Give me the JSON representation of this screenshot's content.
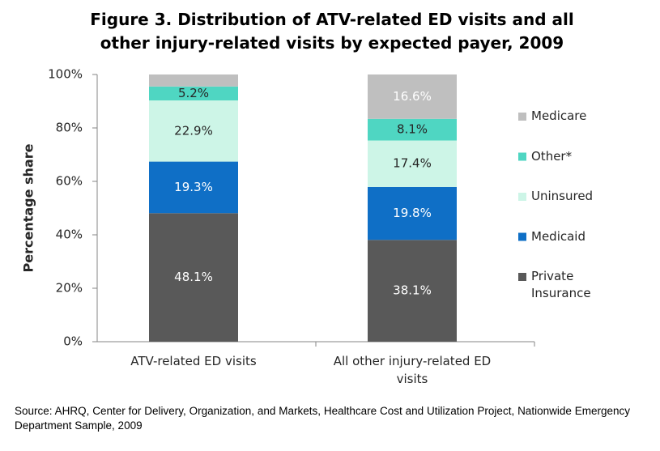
{
  "chart_data": {
    "type": "stacked-bar",
    "title": "Figure 3. Distribution of ATV-related ED visits and all other injury-related visits by expected payer, 2009",
    "y_label": "Percentage share",
    "categories": [
      "ATV-related ED visits",
      "All other injury-related ED visits"
    ],
    "series": [
      {
        "name": "Private Insurance",
        "color": "#595959",
        "label_color": "#ffffff",
        "values": [
          48.1,
          38.1
        ],
        "value_labels": [
          "48.1%",
          "38.1%"
        ]
      },
      {
        "name": "Medicaid",
        "color": "#0f6fc6",
        "label_color": "#ffffff",
        "values": [
          19.3,
          19.8
        ],
        "value_labels": [
          "19.3%",
          "19.8%"
        ]
      },
      {
        "name": "Uninsured",
        "color": "#cdf5e7",
        "label_color": "#262626",
        "values": [
          22.9,
          17.4
        ],
        "value_labels": [
          "22.9%",
          "17.4%"
        ]
      },
      {
        "name": "Other*",
        "color": "#4fd6c2",
        "label_color": "#262626",
        "values": [
          5.2,
          8.1
        ],
        "value_labels": [
          "5.2%",
          "8.1%"
        ]
      },
      {
        "name": "Medicare",
        "color": "#bfbfbf",
        "label_color": "#ffffff",
        "values": [
          4.5,
          16.6
        ],
        "value_labels": [
          null,
          "16.6%"
        ]
      }
    ],
    "ylim": [
      0,
      100
    ],
    "yticks": [
      {
        "value": 0,
        "label": "0%"
      },
      {
        "value": 20,
        "label": "20%"
      },
      {
        "value": 40,
        "label": "40%"
      },
      {
        "value": 60,
        "label": "60%"
      },
      {
        "value": 80,
        "label": "80%"
      },
      {
        "value": 100,
        "label": "100%"
      }
    ],
    "legend": "right",
    "source": "Source: AHRQ, Center for Delivery, Organization, and Markets, Healthcare Cost and Utilization Project, Nationwide Emergency Department Sample, 2009"
  }
}
